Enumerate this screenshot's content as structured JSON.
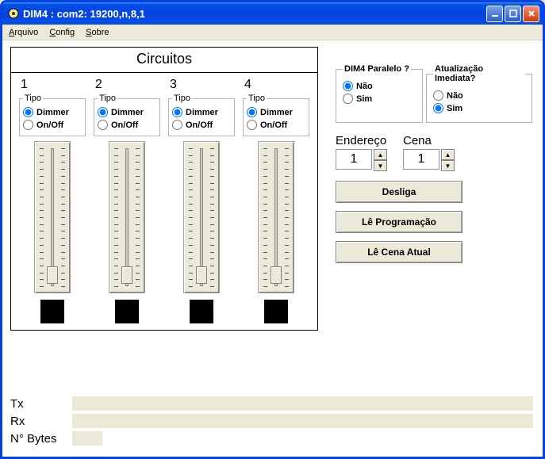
{
  "window": {
    "title": "DIM4 : com2: 19200,n,8,1"
  },
  "menu": {
    "arquivo": "Arquivo",
    "config": "Config",
    "sobre": "Sobre"
  },
  "circuitos": {
    "title": "Circuitos",
    "tipo_legend": "Tipo",
    "dimmer_label": "Dimmer",
    "onoff_label": "On/Off",
    "circuits": [
      {
        "num": "1",
        "tipo": "dimmer",
        "slider_pos": 0.92,
        "swatch_color": "#000000"
      },
      {
        "num": "2",
        "tipo": "dimmer",
        "slider_pos": 0.92,
        "swatch_color": "#000000"
      },
      {
        "num": "3",
        "tipo": "dimmer",
        "slider_pos": 0.92,
        "swatch_color": "#000000"
      },
      {
        "num": "4",
        "tipo": "dimmer",
        "slider_pos": 0.92,
        "swatch_color": "#000000"
      }
    ]
  },
  "paralelo": {
    "legend": "DIM4 Paralelo ?",
    "nao": "Não",
    "sim": "Sim",
    "selected": "nao"
  },
  "atualizacao": {
    "legend": "Atualização Imediata?",
    "nao": "Não",
    "sim": "Sim",
    "selected": "sim"
  },
  "endereco": {
    "label": "Endereço",
    "value": "1"
  },
  "cena": {
    "label": "Cena",
    "value": "1"
  },
  "buttons": {
    "desliga": "Desliga",
    "le_programacao": "Lê Programação",
    "le_cena_atual": "Lê Cena Atual"
  },
  "status": {
    "tx_label": "Tx",
    "rx_label": "Rx",
    "nbytes_label": "N° Bytes"
  },
  "colors": {
    "titlebar": "#0842de",
    "client_bg": "#ffffff",
    "panel_bg": "#ece9d8",
    "border": "#000000"
  }
}
